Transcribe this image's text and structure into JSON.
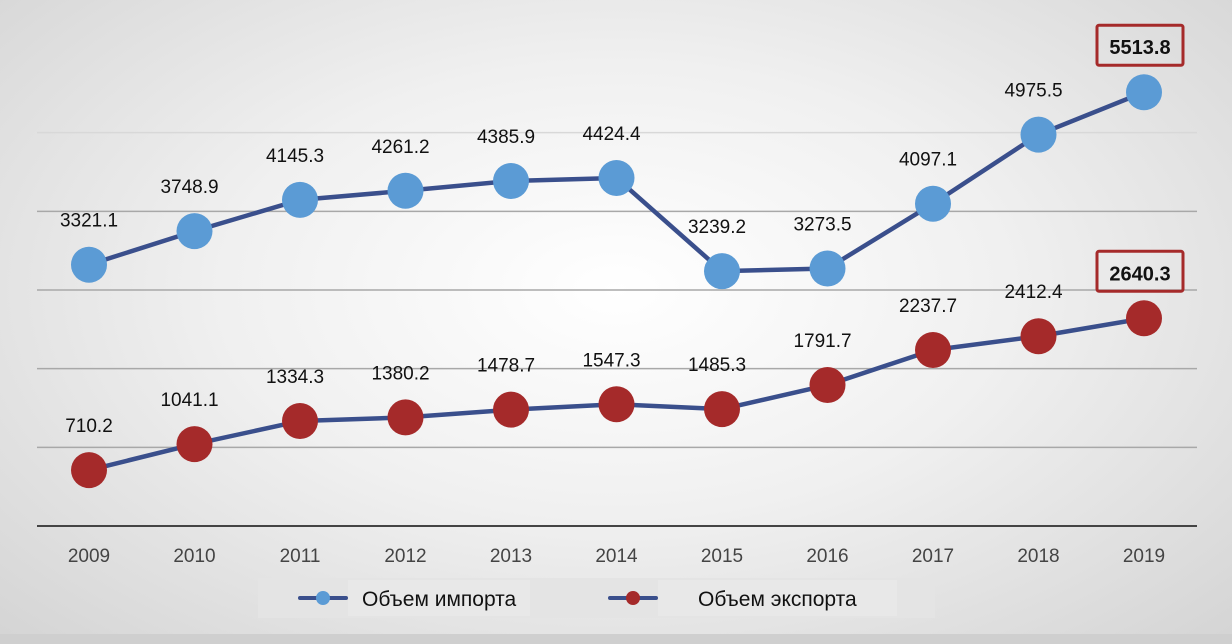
{
  "chart_data": {
    "type": "line",
    "title": "",
    "xlabel": "",
    "ylabel": "",
    "x": [
      "2009",
      "2010",
      "2011",
      "2012",
      "2013",
      "2014",
      "2015",
      "2016",
      "2017",
      "2018",
      "2019"
    ],
    "ylim": [
      0,
      6000
    ],
    "grid_values": [
      1000,
      2000,
      3000,
      4000,
      5000
    ],
    "grid": true,
    "legend_position": "bottom",
    "series": [
      {
        "name": "Объем импорта",
        "color": "#5b9bd5",
        "line_color": "#3a4f8c",
        "values": [
          3321.1,
          3748.9,
          4145.3,
          4261.2,
          4385.9,
          4424.4,
          3239.2,
          3273.5,
          4097.1,
          4975.5,
          5513.8
        ],
        "labels": [
          "3321.1",
          "3748.9",
          "4145.3",
          "4261.2",
          "4385.9",
          "4424.4",
          "3239.2",
          "3273.5",
          "4097.1",
          "4975.5",
          "5513.8"
        ]
      },
      {
        "name": "Объем экспорта",
        "color": "#a52a2a",
        "line_color": "#3a4f8c",
        "values": [
          710.2,
          1041.1,
          1334.3,
          1380.2,
          1478.7,
          1547.3,
          1485.3,
          1791.7,
          2237.7,
          2412.4,
          2640.3
        ],
        "labels": [
          "710.2",
          "1041.1",
          "1334.3",
          "1380.2",
          "1478.7",
          "1547.3",
          "1485.3",
          "1791.7",
          "2237.7",
          "2412.4",
          "2640.3"
        ]
      }
    ],
    "highlight_box_color": "#a52a2a"
  }
}
